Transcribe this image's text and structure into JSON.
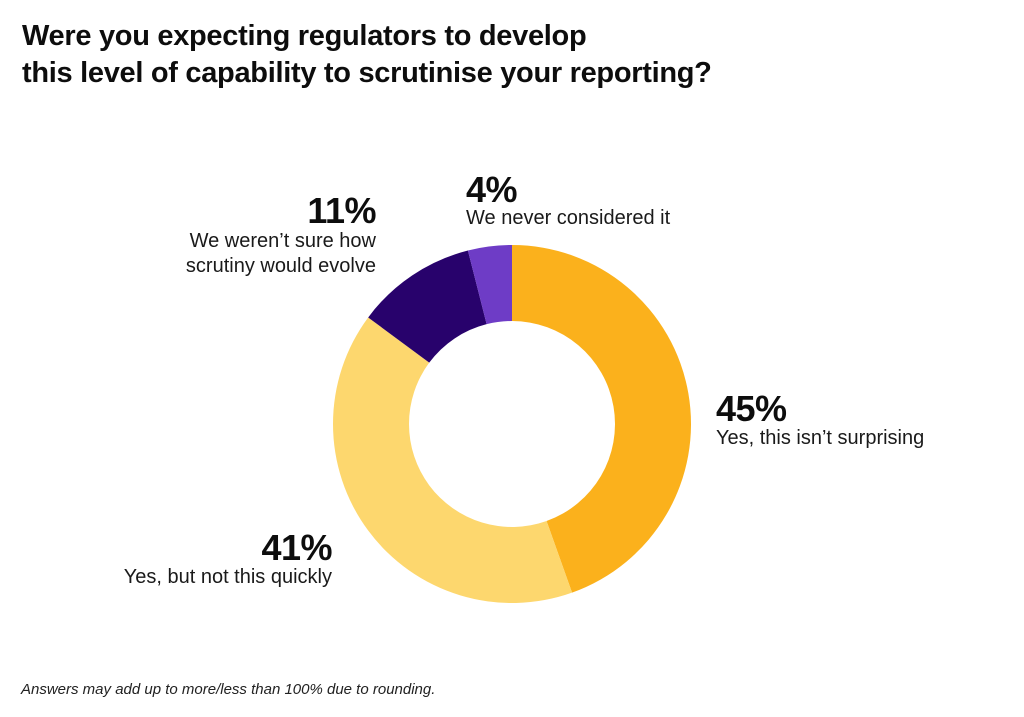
{
  "title_lines": [
    "Were you expecting regulators to develop",
    "this level of capability to scrutinise your reporting?"
  ],
  "footnote": "Answers may add up to more/less than 100% due to rounding.",
  "chart_data": {
    "type": "pie",
    "variant": "donut",
    "title": "Were you expecting regulators to develop this level of capability to scrutinise your reporting?",
    "start": "top, clockwise",
    "slices": [
      {
        "label": "Yes, this isn’t surprising",
        "value": 45,
        "display": "45%",
        "color": "#FBB11C"
      },
      {
        "label": "Yes, but not this quickly",
        "value": 41,
        "display": "41%",
        "color": "#FDD76E"
      },
      {
        "label": "We weren’t sure how scrutiny would evolve",
        "value": 11,
        "display": "11%",
        "color": "#28026C"
      },
      {
        "label": "We never considered it",
        "value": 4,
        "display": "4%",
        "color": "#6E3CC6"
      }
    ],
    "labels": {
      "surprising": {
        "pct": "45%",
        "text": "Yes, this isn’t surprising"
      },
      "not_quickly": {
        "pct": "41%",
        "text": "Yes, but not this quickly"
      },
      "not_sure": {
        "pct": "11%",
        "lines": [
          "We weren’t sure how",
          "scrutiny would evolve"
        ]
      },
      "never": {
        "pct": "4%",
        "text": "We never considered it"
      }
    }
  }
}
